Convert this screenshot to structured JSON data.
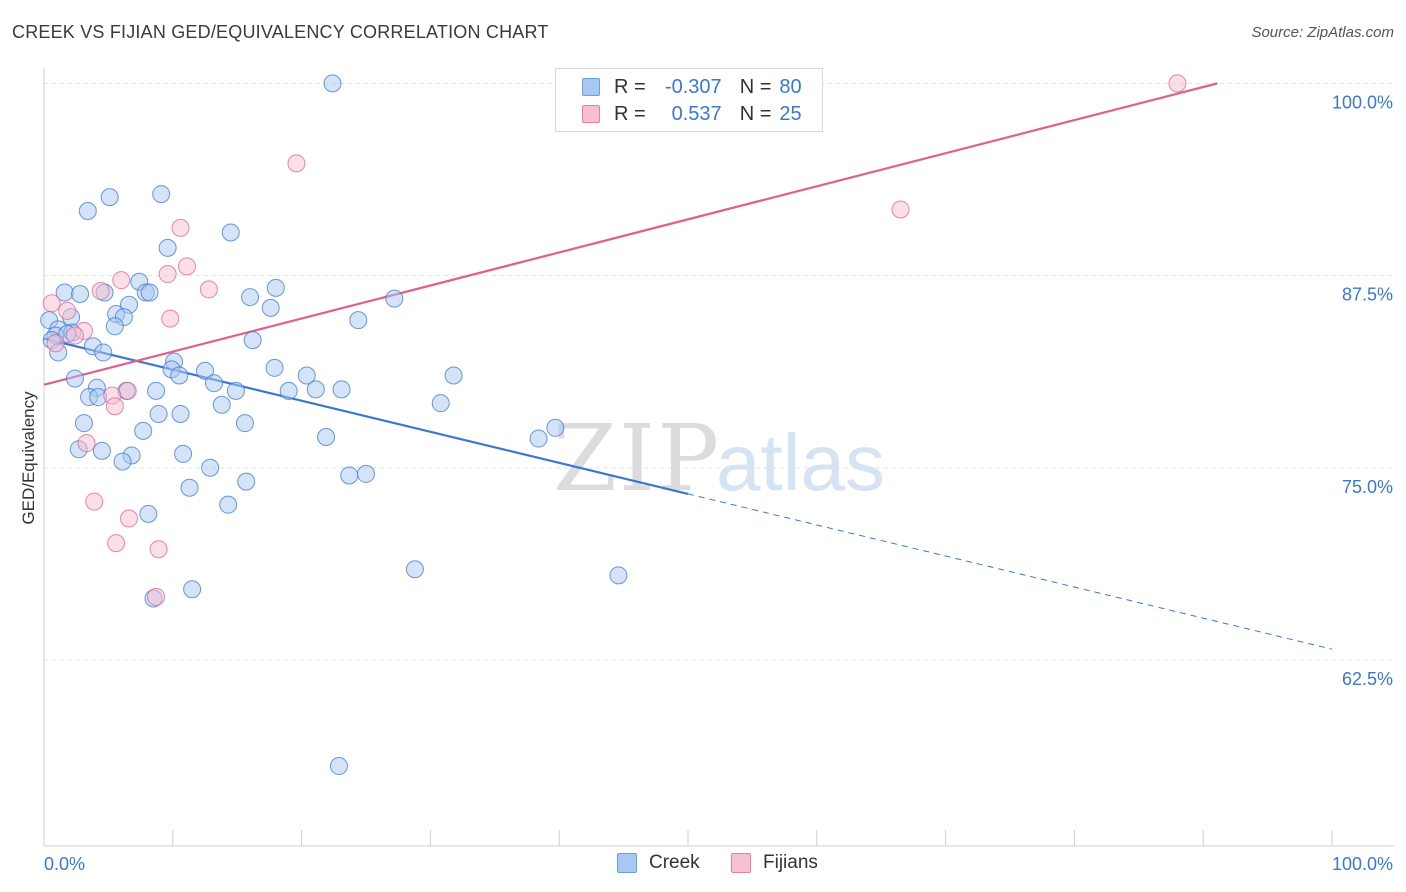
{
  "title": "CREEK VS FIJIAN GED/EQUIVALENCY CORRELATION CHART",
  "source": "Source: ZipAtlas.com",
  "watermark": {
    "zip": "ZIP",
    "atlas": "atlas"
  },
  "legend": {
    "rows": [
      {
        "r_label": "R =",
        "r_value": "-0.307",
        "n_label": "N =",
        "n_value": "80",
        "color": "#a9c8f0",
        "border": "#6a9fe0"
      },
      {
        "r_label": "R =",
        "r_value": "0.537",
        "n_label": "N =",
        "n_value": "25",
        "color": "#f7bfd2",
        "border": "#e87fa3"
      }
    ]
  },
  "bottom_legend": [
    {
      "label": "Creek",
      "color": "#a9c8f0",
      "border": "#6a9fe0"
    },
    {
      "label": "Fijians",
      "color": "#f7bfd2",
      "border": "#e87fa3"
    }
  ],
  "chart_data": {
    "type": "scatter",
    "ylabel": "GED/Equivalency",
    "xlabel": "",
    "x_tick_labels": [
      "0.0%",
      "100.0%"
    ],
    "y_tick_labels": [
      "100.0%",
      "87.5%",
      "75.0%",
      "62.5%"
    ],
    "y_ticks": [
      100.0,
      87.5,
      75.0,
      62.5
    ],
    "xlim": [
      0,
      100
    ],
    "ylim": [
      50.4,
      101.0
    ],
    "grid": true,
    "colors": {
      "creek": "#3a78d0",
      "fijians": "#e0608d",
      "axis_label": "#3a78d0"
    },
    "series": [
      {
        "name": "Creek",
        "color": "#3a78d0",
        "fill": "#a9c8f0",
        "trend": {
          "x0": 0.0,
          "y0": 83.4,
          "x1": 50.0,
          "y1": 73.3,
          "dash_to_x": 100.0,
          "dash_to_y": 63.2
        },
        "points": [
          [
            22.4,
            100.0
          ],
          [
            5.1,
            92.6
          ],
          [
            9.1,
            92.8
          ],
          [
            3.4,
            91.7
          ],
          [
            14.5,
            90.3
          ],
          [
            9.6,
            89.3
          ],
          [
            7.4,
            87.1
          ],
          [
            1.6,
            86.4
          ],
          [
            2.8,
            86.3
          ],
          [
            4.7,
            86.4
          ],
          [
            7.9,
            86.4
          ],
          [
            8.2,
            86.4
          ],
          [
            16.0,
            86.1
          ],
          [
            18.0,
            86.7
          ],
          [
            27.2,
            86.0
          ],
          [
            17.6,
            85.4
          ],
          [
            6.6,
            85.6
          ],
          [
            5.6,
            85.0
          ],
          [
            6.2,
            84.8
          ],
          [
            2.1,
            84.8
          ],
          [
            0.4,
            84.6
          ],
          [
            24.4,
            84.6
          ],
          [
            5.5,
            84.2
          ],
          [
            1.1,
            84.0
          ],
          [
            0.9,
            83.6
          ],
          [
            2.2,
            83.8
          ],
          [
            1.8,
            83.7
          ],
          [
            0.6,
            83.3
          ],
          [
            16.2,
            83.3
          ],
          [
            3.8,
            82.9
          ],
          [
            4.6,
            82.5
          ],
          [
            1.1,
            82.5
          ],
          [
            10.1,
            81.9
          ],
          [
            9.9,
            81.4
          ],
          [
            12.5,
            81.3
          ],
          [
            17.9,
            81.5
          ],
          [
            10.5,
            81.0
          ],
          [
            20.4,
            81.0
          ],
          [
            31.8,
            81.0
          ],
          [
            2.4,
            80.8
          ],
          [
            13.2,
            80.5
          ],
          [
            4.1,
            80.2
          ],
          [
            6.4,
            80.0
          ],
          [
            8.7,
            80.0
          ],
          [
            14.9,
            80.0
          ],
          [
            19.0,
            80.0
          ],
          [
            21.1,
            80.1
          ],
          [
            23.1,
            80.1
          ],
          [
            3.5,
            79.6
          ],
          [
            4.2,
            79.6
          ],
          [
            13.8,
            79.1
          ],
          [
            30.8,
            79.2
          ],
          [
            8.9,
            78.5
          ],
          [
            10.6,
            78.5
          ],
          [
            3.1,
            77.9
          ],
          [
            15.6,
            77.9
          ],
          [
            39.7,
            77.6
          ],
          [
            7.7,
            77.4
          ],
          [
            21.9,
            77.0
          ],
          [
            38.4,
            76.9
          ],
          [
            2.7,
            76.2
          ],
          [
            4.5,
            76.1
          ],
          [
            10.8,
            75.9
          ],
          [
            6.8,
            75.8
          ],
          [
            6.1,
            75.4
          ],
          [
            12.9,
            75.0
          ],
          [
            23.7,
            74.5
          ],
          [
            25.0,
            74.6
          ],
          [
            15.7,
            74.1
          ],
          [
            11.3,
            73.7
          ],
          [
            14.3,
            72.6
          ],
          [
            8.1,
            72.0
          ],
          [
            28.8,
            68.4
          ],
          [
            44.6,
            68.0
          ],
          [
            11.5,
            67.1
          ],
          [
            8.5,
            66.5
          ],
          [
            22.9,
            55.6
          ]
        ]
      },
      {
        "name": "Fijians",
        "color": "#e0608d",
        "fill": "#f7bfd2",
        "trend": {
          "x0": 0.0,
          "y0": 80.4,
          "x1": 91.1,
          "y1": 100.0
        },
        "points": [
          [
            88.0,
            100.0
          ],
          [
            19.6,
            94.8
          ],
          [
            66.5,
            91.8
          ],
          [
            10.6,
            90.6
          ],
          [
            11.1,
            88.1
          ],
          [
            9.6,
            87.6
          ],
          [
            6.0,
            87.2
          ],
          [
            12.8,
            86.6
          ],
          [
            4.4,
            86.5
          ],
          [
            0.6,
            85.7
          ],
          [
            9.8,
            84.7
          ],
          [
            1.8,
            85.2
          ],
          [
            3.1,
            83.9
          ],
          [
            2.4,
            83.6
          ],
          [
            0.9,
            83.1
          ],
          [
            6.5,
            80.0
          ],
          [
            5.3,
            79.7
          ],
          [
            5.5,
            79.0
          ],
          [
            3.3,
            76.6
          ],
          [
            3.9,
            72.8
          ],
          [
            6.6,
            71.7
          ],
          [
            5.6,
            70.1
          ],
          [
            8.9,
            69.7
          ],
          [
            8.7,
            66.6
          ]
        ]
      }
    ]
  }
}
